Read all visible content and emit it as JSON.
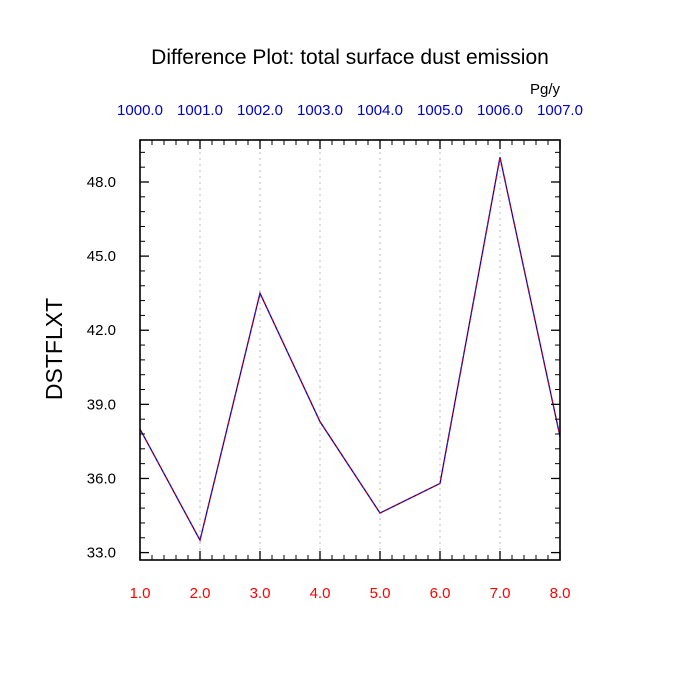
{
  "chart_data": {
    "type": "line",
    "title": "Difference Plot: total surface dust emission",
    "units": "Pg/y",
    "ylabel": "DSTFLXT",
    "xlabel": "",
    "x": [
      1.0,
      2.0,
      3.0,
      4.0,
      5.0,
      6.0,
      7.0,
      8.0
    ],
    "x_tick_labels": [
      "1.0",
      "2.0",
      "3.0",
      "4.0",
      "5.0",
      "6.0",
      "7.0",
      "8.0"
    ],
    "top_tick_labels": [
      "1000.0",
      "1001.0",
      "1002.0",
      "1003.0",
      "1004.0",
      "1005.0",
      "1006.0",
      "1007.0"
    ],
    "y_tick_values": [
      33.0,
      36.0,
      39.0,
      42.0,
      45.0,
      48.0
    ],
    "y_tick_labels": [
      "33.0",
      "36.0",
      "39.0",
      "42.0",
      "45.0",
      "48.0"
    ],
    "xlim": [
      1.0,
      8.0
    ],
    "ylim": [
      32.7,
      49.7
    ],
    "grid": "vertical dotted",
    "series": [
      {
        "name": "",
        "color": "#0000cc",
        "dash_color": "#cc0000",
        "values": [
          38.0,
          33.5,
          43.5,
          38.3,
          34.6,
          35.8,
          49.0,
          37.7
        ]
      }
    ],
    "colors": {
      "bottom_ticks": "#ff0000",
      "top_ticks": "#0000cc",
      "axis": "#000000",
      "grid": "#bbbbbb"
    }
  }
}
